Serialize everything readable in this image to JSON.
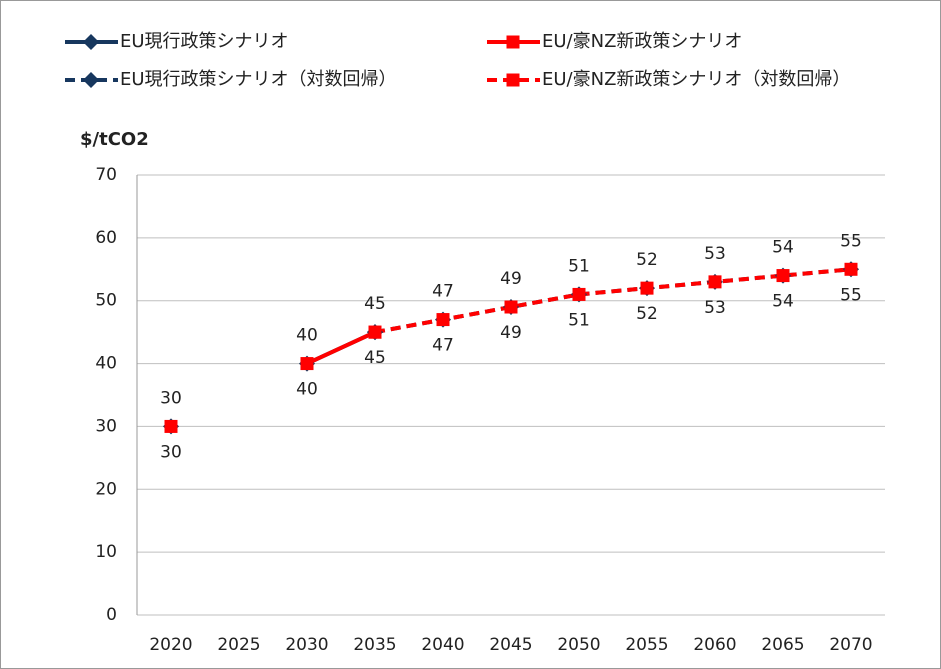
{
  "chart_data": {
    "type": "line",
    "y_axis_label": "$/tCO2",
    "x": [
      2020,
      2025,
      2030,
      2035,
      2040,
      2045,
      2050,
      2055,
      2060,
      2065,
      2070
    ],
    "xlim": [
      2017.5,
      2072.5
    ],
    "xticks": [
      2020,
      2025,
      2030,
      2035,
      2040,
      2045,
      2050,
      2055,
      2060,
      2065,
      2070
    ],
    "ylim": [
      0,
      70
    ],
    "yticks": [
      0,
      10,
      20,
      30,
      40,
      50,
      60,
      70
    ],
    "grid": true,
    "series": [
      {
        "name": "EU現行政策シナリオ",
        "color": "#17375e",
        "marker": "diamond",
        "dashed": false,
        "labels": "above",
        "values": [
          30,
          null,
          40,
          45,
          null,
          null,
          null,
          null,
          null,
          null,
          null
        ]
      },
      {
        "name": "EU/豪NZ新政策シナリオ",
        "color": "#ff0000",
        "marker": "square",
        "dashed": false,
        "labels": "below",
        "values": [
          30,
          null,
          40,
          45,
          null,
          null,
          null,
          null,
          null,
          null,
          null
        ]
      },
      {
        "name": "EU現行政策シナリオ（対数回帰）",
        "color": "#17375e",
        "marker": "diamond",
        "dashed": true,
        "labels": "above",
        "values": [
          null,
          null,
          null,
          45,
          47,
          49,
          51,
          52,
          53,
          54,
          55
        ]
      },
      {
        "name": "EU/豪NZ新政策シナリオ（対数回帰）",
        "color": "#ff0000",
        "marker": "square",
        "dashed": true,
        "labels": "below",
        "values": [
          null,
          null,
          null,
          45,
          47,
          49,
          51,
          52,
          53,
          54,
          55
        ]
      }
    ]
  }
}
